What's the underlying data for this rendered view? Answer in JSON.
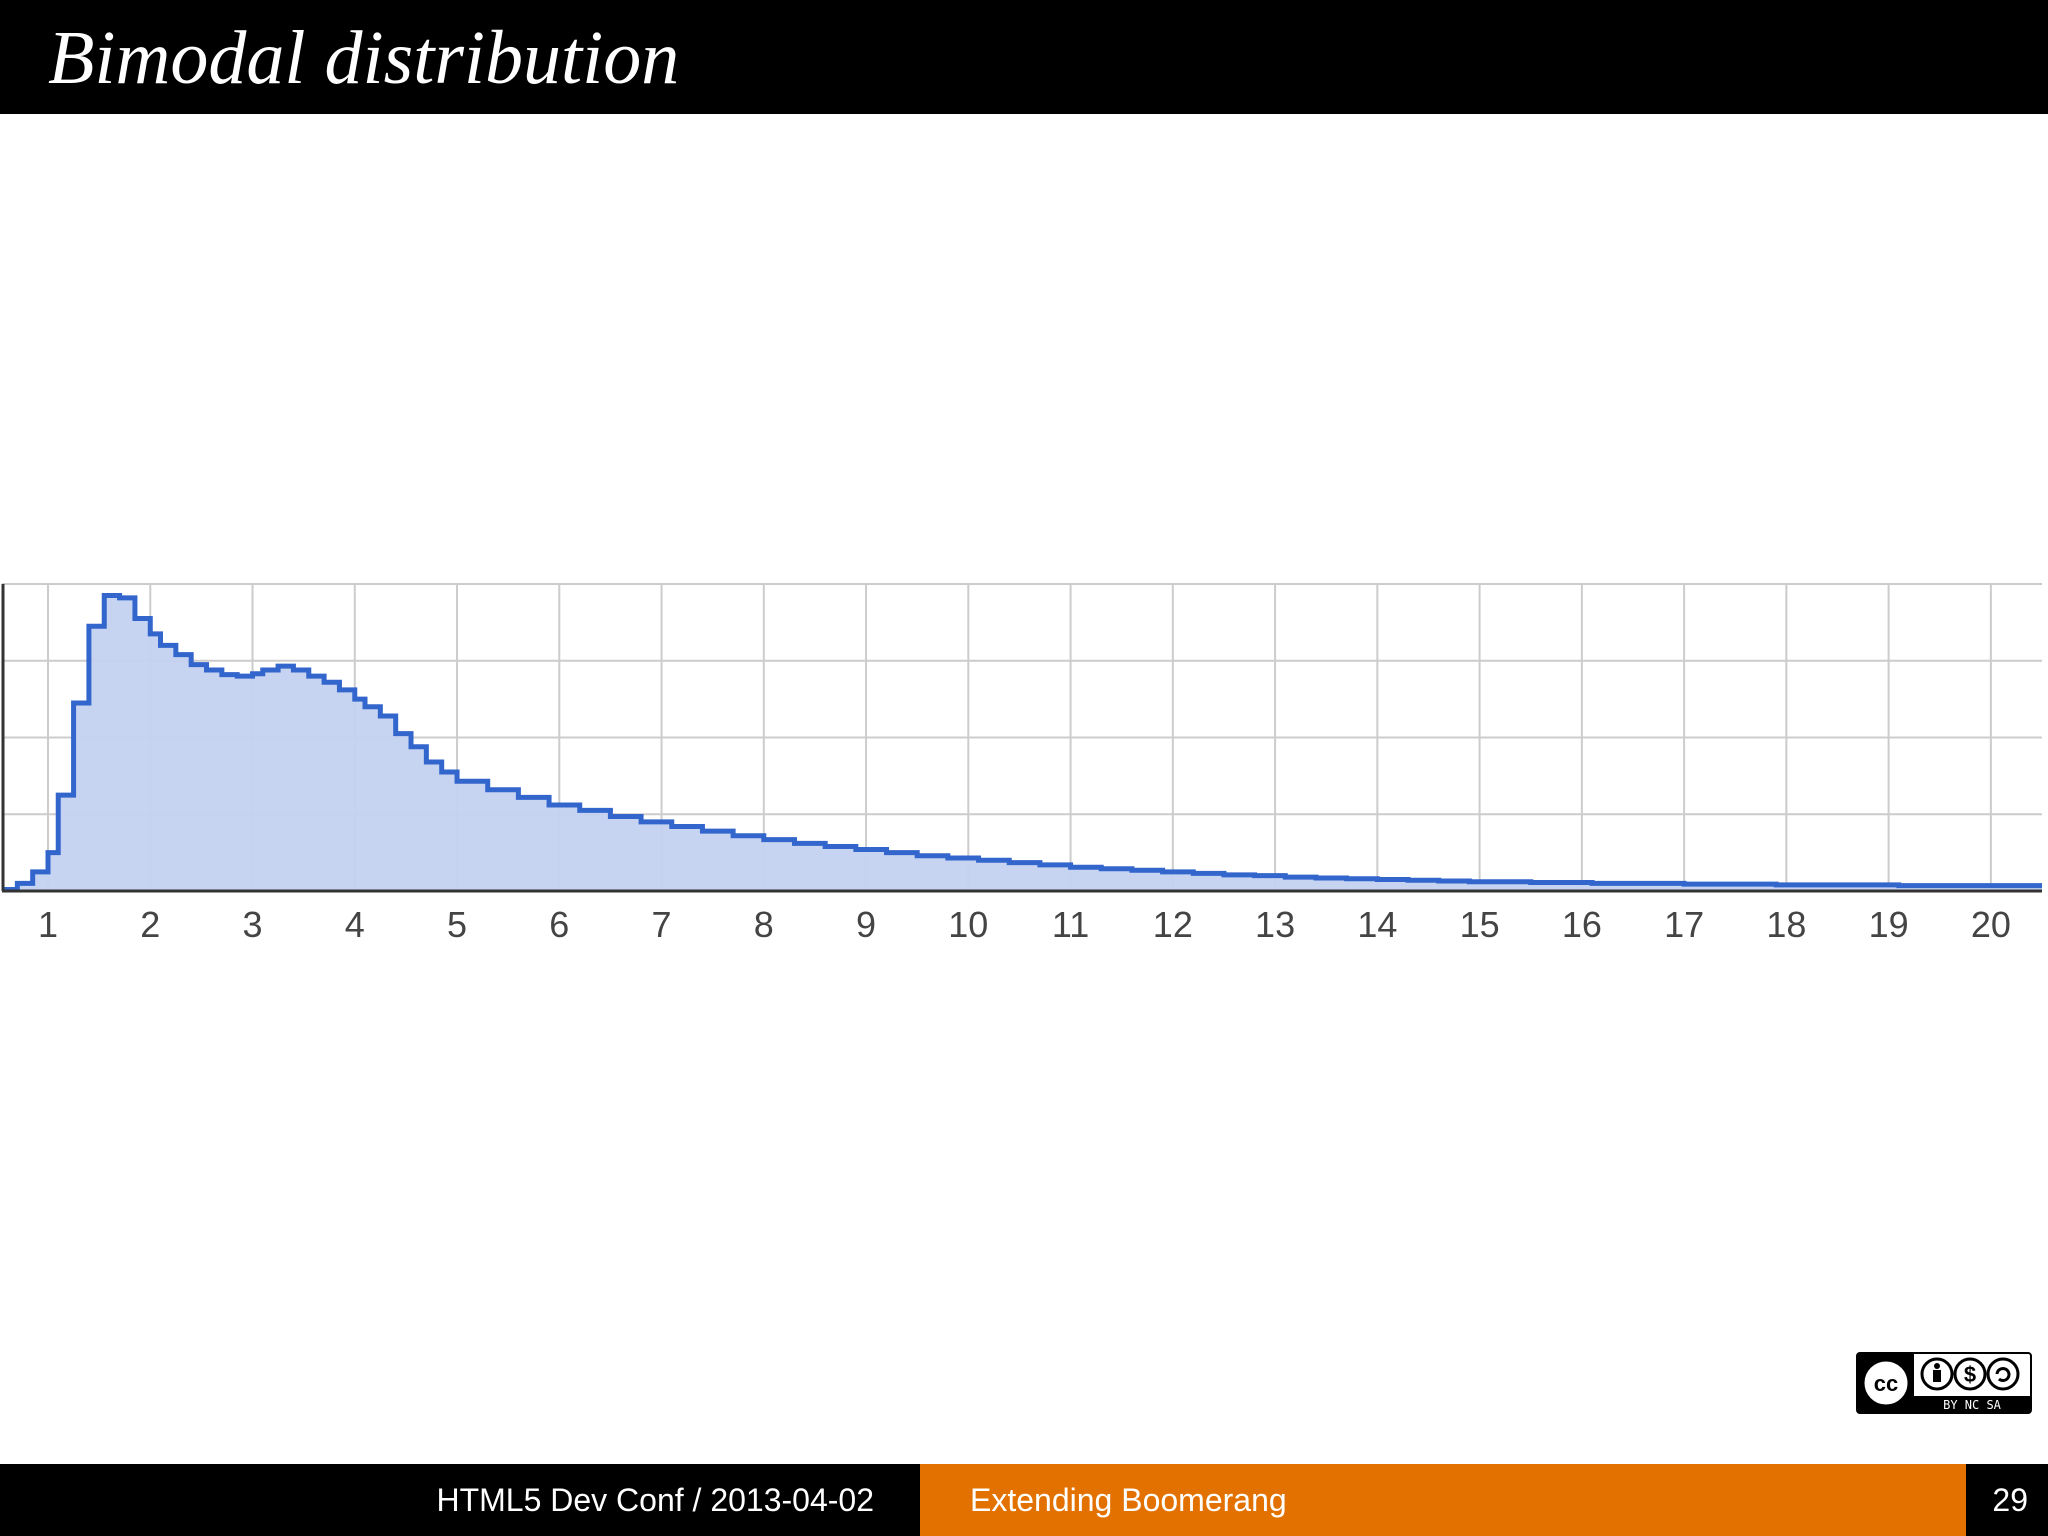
{
  "slide": {
    "title": "Bimodal distribution"
  },
  "footer": {
    "left_text": "HTML5 Dev Conf / 2013-04-02",
    "middle_text": "Extending Boomerang",
    "page_number": "29"
  },
  "license_badge": {
    "icon": "cc-by-nc-sa-icon",
    "text": "BY NC SA"
  },
  "colors": {
    "bar": "#000000",
    "accent": "#e37100",
    "series_line": "#3366cc",
    "series_fill": "#c3d1f0",
    "grid": "#cccccc"
  },
  "chart_data": {
    "type": "area",
    "step": true,
    "x_ticks": [
      1,
      2,
      3,
      4,
      5,
      6,
      7,
      8,
      9,
      10,
      11,
      12,
      13,
      14,
      15,
      16,
      17,
      18,
      19,
      20
    ],
    "xlim": [
      0.55,
      20.5
    ],
    "ylim": [
      0,
      4
    ],
    "y_gridlines": [
      1,
      2,
      3,
      4
    ],
    "y_tick_labels": false,
    "grid": true,
    "series": [
      {
        "x": [
          0.55,
          0.7,
          0.85,
          1.0,
          1.1,
          1.25,
          1.4,
          1.55,
          1.7,
          1.85,
          2.0,
          2.1,
          2.25,
          2.4,
          2.55,
          2.7,
          2.85,
          3.0,
          3.1,
          3.25,
          3.4,
          3.55,
          3.7,
          3.85,
          4.0,
          4.1,
          4.25,
          4.4,
          4.55,
          4.7,
          4.85,
          5.0,
          5.3,
          5.6,
          5.9,
          6.2,
          6.5,
          6.8,
          7.1,
          7.4,
          7.7,
          8.0,
          8.3,
          8.6,
          8.9,
          9.2,
          9.5,
          9.8,
          10.1,
          10.4,
          10.7,
          11.0,
          11.3,
          11.6,
          11.9,
          12.2,
          12.5,
          12.8,
          13.1,
          13.4,
          13.7,
          14.0,
          14.3,
          14.6,
          14.9,
          15.2,
          15.5,
          15.8,
          16.1,
          16.4,
          16.7,
          17.0,
          17.3,
          17.6,
          17.9,
          18.2,
          18.5,
          18.8,
          19.1,
          19.4,
          19.7,
          20.0,
          20.3
        ],
        "y": [
          0.02,
          0.1,
          0.25,
          0.5,
          1.25,
          2.45,
          3.45,
          3.85,
          3.82,
          3.55,
          3.35,
          3.2,
          3.08,
          2.95,
          2.88,
          2.82,
          2.8,
          2.83,
          2.88,
          2.93,
          2.88,
          2.8,
          2.72,
          2.62,
          2.5,
          2.4,
          2.28,
          2.05,
          1.88,
          1.68,
          1.55,
          1.43,
          1.32,
          1.22,
          1.12,
          1.05,
          0.97,
          0.9,
          0.84,
          0.78,
          0.72,
          0.67,
          0.62,
          0.58,
          0.54,
          0.5,
          0.46,
          0.43,
          0.4,
          0.37,
          0.34,
          0.31,
          0.29,
          0.27,
          0.25,
          0.23,
          0.21,
          0.2,
          0.18,
          0.17,
          0.16,
          0.15,
          0.14,
          0.13,
          0.12,
          0.12,
          0.11,
          0.11,
          0.1,
          0.1,
          0.1,
          0.09,
          0.09,
          0.09,
          0.08,
          0.08,
          0.08,
          0.08,
          0.07,
          0.07,
          0.07,
          0.07,
          0.07
        ]
      }
    ]
  }
}
